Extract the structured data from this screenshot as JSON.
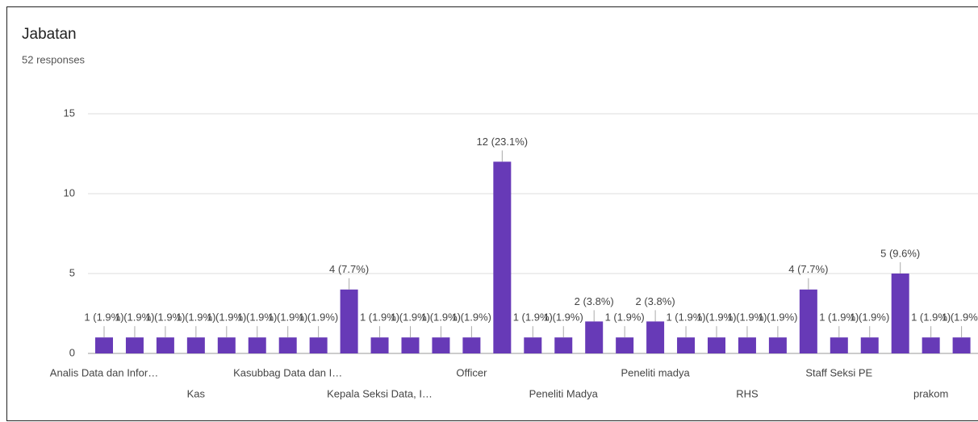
{
  "chart_data": {
    "type": "bar",
    "title": "Jabatan",
    "subtitle": "52 responses",
    "categories": [
      "Analis Data dan Infor…",
      null,
      null,
      "Kas",
      null,
      null,
      "Kasubbag Data dan I…",
      null,
      null,
      "Kepala Seksi Data, I…",
      null,
      null,
      "Officer",
      null,
      null,
      "Peneliti Madya",
      null,
      null,
      "Peneliti madya",
      null,
      null,
      "RHS",
      null,
      null,
      "Staff Seksi PE",
      null,
      null,
      "prakom",
      null
    ],
    "values": [
      1,
      1,
      1,
      1,
      1,
      1,
      1,
      1,
      4,
      1,
      1,
      1,
      1,
      12,
      1,
      1,
      2,
      1,
      2,
      1,
      1,
      1,
      1,
      4,
      1,
      1,
      5,
      1,
      1
    ],
    "value_labels": [
      "1 (1.9%)",
      "1 (1.9%)",
      "1 (1.9%)",
      "1 (1.9%)",
      "1 (1.9%)",
      "1 (1.9%)",
      "1 (1.9%)",
      "1 (1.9%)",
      "4 (7.7%)",
      "1 (1.9%)",
      "1 (1.9%)",
      "1 (1.9%)",
      "1 (1.9%)",
      "12 (23.1%)",
      "1 (1.9%)",
      "1 (1.9%)",
      "2 (3.8%)",
      "1 (1.9%)",
      "2 (3.8%)",
      "1 (1.9%)",
      "1 (1.9%)",
      "1 (1.9%)",
      "1 (1.9%)",
      "4 (7.7%)",
      "1 (1.9%)",
      "1 (1.9%)",
      "5 (9.6%)",
      "1 (1.9%)",
      "1 (1.9%)"
    ],
    "color": "#673ab7",
    "ylim": [
      0,
      15
    ],
    "yticks": [
      0,
      5,
      10,
      15
    ],
    "grid": true
  }
}
